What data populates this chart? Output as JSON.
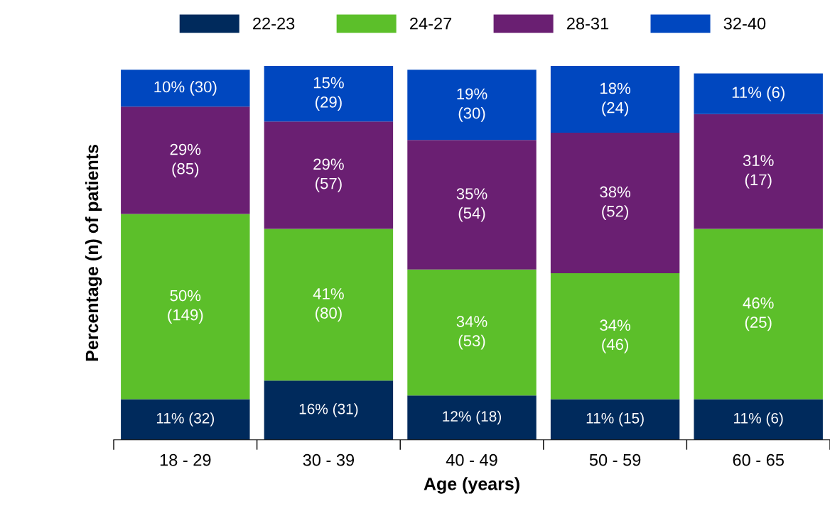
{
  "chart_data": {
    "type": "bar",
    "stacked": true,
    "xlabel": "Age (years)",
    "ylabel": "Percentage (n) of patients",
    "legend": "top",
    "categories": [
      "18 - 29",
      "30 - 39",
      "40 - 49",
      "50 - 59",
      "60 - 65"
    ],
    "series": [
      {
        "name": "22-23",
        "color": "#002a5c",
        "values": [
          11,
          16,
          12,
          11,
          11
        ],
        "value_labels": [
          "11% (32)",
          "16% (31)",
          "12% (18)",
          "11% (15)",
          "11% (6)"
        ]
      },
      {
        "name": "24-27",
        "color": "#5cbf2a",
        "values": [
          50,
          41,
          34,
          34,
          46
        ],
        "value_labels": [
          "50%\n(149)",
          "41%\n(80)",
          "34%\n(53)",
          "34%\n(46)",
          "46%\n(25)"
        ]
      },
      {
        "name": "28-31",
        "color": "#6a1f72",
        "values": [
          29,
          29,
          35,
          38,
          31
        ],
        "value_labels": [
          "29%\n(85)",
          "29%\n(57)",
          "35%\n(54)",
          "38%\n(52)",
          "31%\n(17)"
        ]
      },
      {
        "name": "32-40",
        "color": "#0047bf",
        "values": [
          10,
          15,
          19,
          18,
          11
        ],
        "value_labels": [
          "10% (30)",
          "15%\n(29)",
          "19%\n(30)",
          "18%\n(24)",
          "11% (6)"
        ]
      }
    ]
  }
}
